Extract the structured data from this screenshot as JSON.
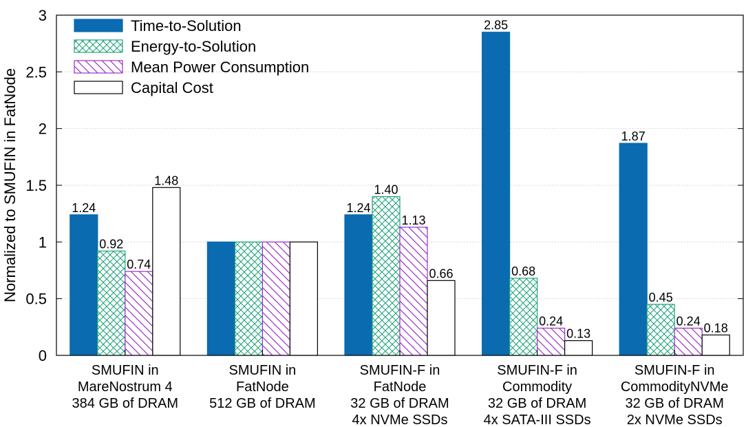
{
  "chart_data": {
    "type": "bar",
    "title": "",
    "xlabel": "",
    "ylabel": "Normalized to SMUFIN in FatNode",
    "ylim": [
      0,
      3
    ],
    "yticks": [
      "0",
      "0.5",
      "1",
      "1.5",
      "2",
      "2.5",
      "3"
    ],
    "ytick_values": [
      0,
      0.5,
      1,
      1.5,
      2,
      2.5,
      3
    ],
    "grid": true,
    "legend_position": "top-left",
    "categories": [
      [
        "SMUFIN in",
        "MareNostrum 4",
        "384 GB of DRAM"
      ],
      [
        "SMUFIN in",
        "FatNode",
        "512 GB of DRAM"
      ],
      [
        "SMUFIN-F in",
        "FatNode",
        "32 GB of DRAM",
        "4x NVMe SSDs"
      ],
      [
        "SMUFIN-F in",
        "Commodity",
        "32 GB of DRAM",
        "4x SATA-III SSDs"
      ],
      [
        "SMUFIN-F in",
        "CommodityNVMe",
        "32 GB of DRAM",
        "2x NVMe SSDs"
      ]
    ],
    "series": [
      {
        "name": "Time-to-Solution",
        "values": [
          1.24,
          1.0,
          1.24,
          2.85,
          1.87
        ],
        "labels": [
          "1.24",
          "",
          "1.24",
          "2.85",
          "1.87"
        ],
        "fill": "#0a6bb0",
        "stroke": "#0a6bb0",
        "pattern": "solid"
      },
      {
        "name": "Energy-to-Solution",
        "values": [
          0.92,
          1.0,
          1.4,
          0.68,
          0.45
        ],
        "labels": [
          "0.92",
          "",
          "1.40",
          "0.68",
          "0.45"
        ],
        "fill": "#ffffff",
        "stroke": "#1fa37a",
        "pattern": "crosshatch"
      },
      {
        "name": "Mean Power Consumption",
        "values": [
          0.74,
          1.0,
          1.13,
          0.24,
          0.24
        ],
        "labels": [
          "0.74",
          "",
          "1.13",
          "0.24",
          "0.24"
        ],
        "fill": "#ffffff",
        "stroke": "#9b30c9",
        "pattern": "diagonal"
      },
      {
        "name": "Capital Cost",
        "values": [
          1.48,
          1.0,
          0.66,
          0.13,
          0.18
        ],
        "labels": [
          "1.48",
          "",
          "0.66",
          "0.13",
          "0.18"
        ],
        "fill": "#ffffff",
        "stroke": "#000000",
        "pattern": "none"
      }
    ]
  }
}
